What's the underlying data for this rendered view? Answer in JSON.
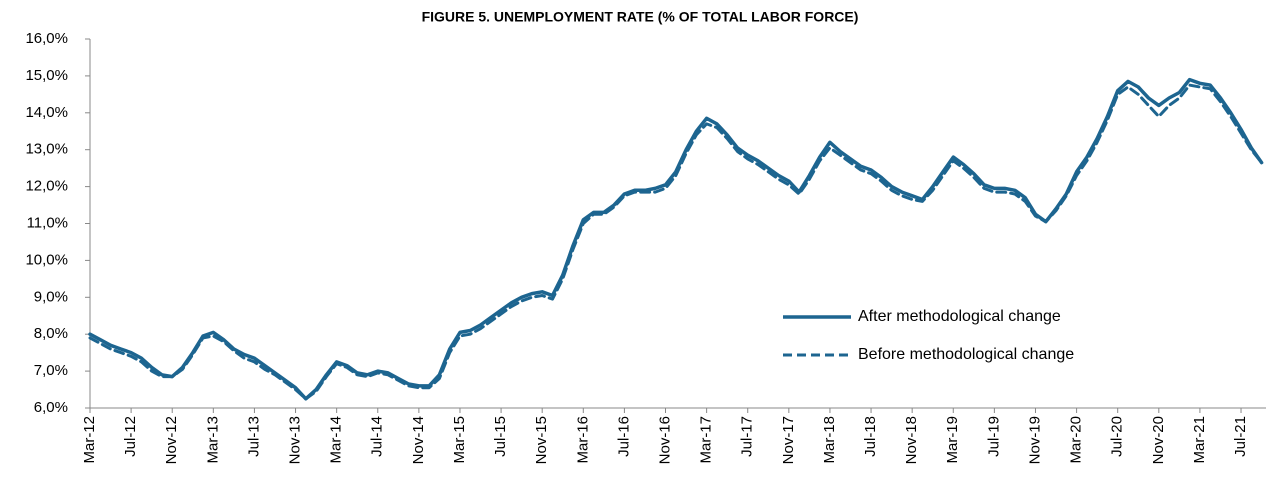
{
  "chart_data": {
    "type": "line",
    "title": "FIGURE 5. UNEMPLOYMENT RATE (% OF TOTAL LABOR FORCE)",
    "categories": [
      "Mar-12",
      null,
      null,
      null,
      "Jul-12",
      null,
      null,
      null,
      "Nov-12",
      null,
      null,
      null,
      "Mar-13",
      null,
      null,
      null,
      "Jul-13",
      null,
      null,
      null,
      "Nov-13",
      null,
      null,
      null,
      "Mar-14",
      null,
      null,
      null,
      "Jul-14",
      null,
      null,
      null,
      "Nov-14",
      null,
      null,
      null,
      "Mar-15",
      null,
      null,
      null,
      "Jul-15",
      null,
      null,
      null,
      "Nov-15",
      null,
      null,
      null,
      "Mar-16",
      null,
      null,
      null,
      "Jul-16",
      null,
      null,
      null,
      "Nov-16",
      null,
      null,
      null,
      "Mar-17",
      null,
      null,
      null,
      "Jul-17",
      null,
      null,
      null,
      "Nov-17",
      null,
      null,
      null,
      "Mar-18",
      null,
      null,
      null,
      "Jul-18",
      null,
      null,
      null,
      "Nov-18",
      null,
      null,
      null,
      "Mar-19",
      null,
      null,
      null,
      "Jul-19",
      null,
      null,
      null,
      "Nov-19",
      null,
      null,
      null,
      "Mar-20",
      null,
      null,
      null,
      "Jul-20",
      null,
      null,
      null,
      "Nov-20",
      null,
      null,
      null,
      "Mar-21",
      null,
      null,
      null,
      "Jul-21",
      null,
      null
    ],
    "series": [
      {
        "name": "After methodological change",
        "color": "#1d6590",
        "dash": false,
        "values": [
          8.0,
          7.85,
          7.7,
          7.6,
          7.5,
          7.35,
          7.1,
          6.9,
          6.85,
          7.1,
          7.5,
          7.95,
          8.05,
          7.85,
          7.6,
          7.45,
          7.35,
          7.15,
          6.95,
          6.75,
          6.55,
          6.25,
          6.5,
          6.9,
          7.25,
          7.15,
          6.95,
          6.9,
          7.0,
          6.95,
          6.8,
          6.65,
          6.6,
          6.6,
          6.9,
          7.6,
          8.05,
          8.1,
          8.25,
          8.45,
          8.65,
          8.85,
          9.0,
          9.1,
          9.15,
          9.05,
          9.6,
          10.4,
          11.1,
          11.3,
          11.3,
          11.5,
          11.8,
          11.9,
          11.9,
          11.95,
          12.05,
          12.4,
          13.0,
          13.5,
          13.85,
          13.7,
          13.4,
          13.05,
          12.85,
          12.7,
          12.5,
          12.3,
          12.15,
          11.85,
          12.3,
          12.8,
          13.2,
          12.95,
          12.75,
          12.55,
          12.45,
          12.25,
          12.0,
          11.85,
          11.75,
          11.65,
          12.0,
          12.4,
          12.8,
          12.6,
          12.35,
          12.05,
          11.95,
          11.95,
          11.9,
          11.7,
          11.25,
          11.05,
          11.4,
          11.8,
          12.4,
          12.8,
          13.3,
          13.9,
          14.6,
          14.85,
          14.7,
          14.4,
          14.2,
          14.4,
          14.55,
          14.9,
          14.8,
          14.75,
          14.4,
          14.0,
          13.55,
          13.05,
          12.65
        ]
      },
      {
        "name": "Before methodological change",
        "color": "#1d6590",
        "dash": true,
        "values": [
          7.9,
          7.75,
          7.6,
          7.5,
          7.4,
          7.25,
          7.0,
          6.85,
          6.85,
          7.05,
          7.45,
          7.9,
          7.95,
          7.8,
          7.55,
          7.35,
          7.25,
          7.05,
          6.9,
          6.7,
          6.5,
          6.25,
          6.45,
          6.85,
          7.2,
          7.1,
          6.9,
          6.85,
          6.95,
          6.9,
          6.75,
          6.6,
          6.55,
          6.55,
          6.8,
          7.5,
          7.95,
          8.0,
          8.15,
          8.35,
          8.55,
          8.75,
          8.9,
          9.0,
          9.05,
          8.95,
          9.5,
          10.3,
          11.0,
          11.25,
          11.25,
          11.45,
          11.75,
          11.85,
          11.85,
          11.85,
          11.95,
          12.3,
          12.9,
          13.4,
          13.7,
          13.6,
          13.3,
          12.95,
          12.75,
          12.6,
          12.4,
          12.2,
          12.05,
          11.8,
          12.2,
          12.7,
          13.05,
          12.85,
          12.65,
          12.45,
          12.35,
          12.15,
          11.9,
          11.75,
          11.65,
          11.6,
          11.9,
          12.3,
          12.7,
          12.5,
          12.25,
          11.95,
          11.85,
          11.85,
          11.8,
          11.6,
          11.2,
          11.05,
          11.35,
          11.75,
          12.3,
          12.7,
          13.2,
          13.8,
          14.5,
          14.7,
          14.5,
          14.2,
          13.9,
          14.2,
          14.4,
          14.75,
          14.7,
          14.65,
          14.3,
          13.9,
          13.45,
          13.0,
          12.65
        ]
      }
    ],
    "ylim": [
      6,
      16
    ],
    "yticks": [
      {
        "value": 6,
        "label": "6,0%"
      },
      {
        "value": 7,
        "label": "7,0%"
      },
      {
        "value": 8,
        "label": "8,0%"
      },
      {
        "value": 9,
        "label": "9,0%"
      },
      {
        "value": 10,
        "label": "10,0%"
      },
      {
        "value": 11,
        "label": "11,0%"
      },
      {
        "value": 12,
        "label": "12,0%"
      },
      {
        "value": 13,
        "label": "13,0%"
      },
      {
        "value": 14,
        "label": "14,0%"
      },
      {
        "value": 15,
        "label": "15,0%"
      },
      {
        "value": 16,
        "label": "16,0%"
      }
    ],
    "grid": false
  }
}
